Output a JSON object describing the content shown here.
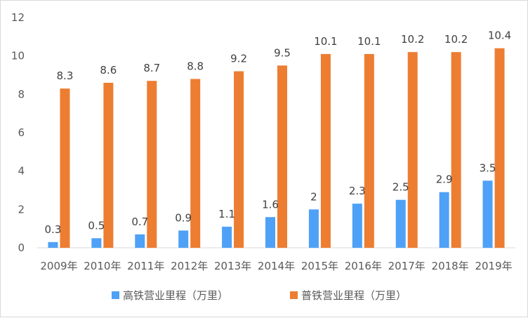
{
  "chart_data": {
    "type": "bar",
    "title": "",
    "xlabel": "",
    "ylabel": "",
    "ylim": [
      0,
      12
    ],
    "yticks": [
      0,
      2,
      4,
      6,
      8,
      10,
      12
    ],
    "grid": false,
    "legend_position": "bottom",
    "categories": [
      "2009年",
      "2010年",
      "2011年",
      "2012年",
      "2013年",
      "2014年",
      "2015年",
      "2016年",
      "2017年",
      "2018年",
      "2019年"
    ],
    "series": [
      {
        "name": "高铁营业里程（万里）",
        "color": "#4EA1F6",
        "values": [
          0.3,
          0.5,
          0.7,
          0.9,
          1.1,
          1.6,
          2,
          2.3,
          2.5,
          2.9,
          3.5
        ]
      },
      {
        "name": "普铁营业里程（万里）",
        "color": "#ED7D31",
        "values": [
          8.3,
          8.6,
          8.7,
          8.8,
          9.2,
          9.5,
          10.1,
          10.1,
          10.2,
          10.2,
          10.4
        ]
      }
    ]
  }
}
